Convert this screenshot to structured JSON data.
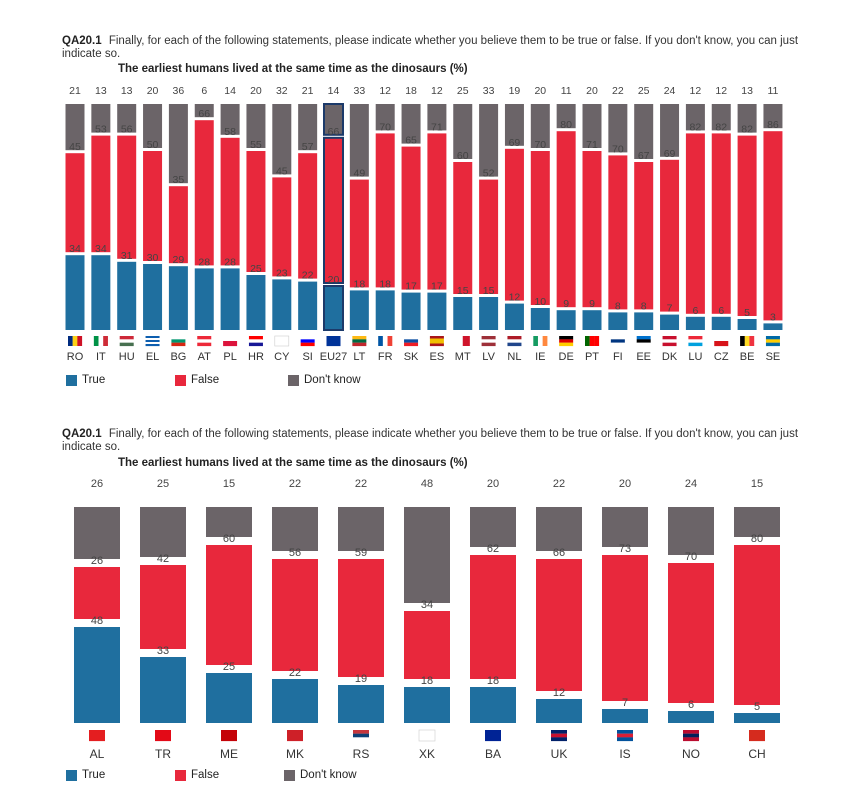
{
  "colors": {
    "true": "#1f6f9f",
    "false": "#e8283c",
    "dontknow": "#6b6468",
    "eu_outline": "#1c3a6a",
    "label": "#444444"
  },
  "legend": {
    "true_label": "True",
    "false_label": "False",
    "dontknow_label": "Don't know"
  },
  "chart_data": [
    {
      "type": "bar",
      "stacked": true,
      "question_code": "QA20.1",
      "question_text": "Finally, for each of the following statements, please indicate whether you believe them to be true or false. If you don't know, you can just indicate so.",
      "title": "The earliest humans lived at the same time as the dinosaurs (%)",
      "categories": [
        "RO",
        "IT",
        "HU",
        "EL",
        "BG",
        "AT",
        "PL",
        "HR",
        "CY",
        "SI",
        "EU27",
        "LT",
        "FR",
        "SK",
        "ES",
        "MT",
        "LV",
        "NL",
        "IE",
        "DE",
        "PT",
        "FI",
        "EE",
        "DK",
        "LU",
        "CZ",
        "BE",
        "SE"
      ],
      "highlight": "EU27",
      "series": [
        {
          "name": "True",
          "values": [
            34,
            34,
            31,
            30,
            29,
            28,
            28,
            25,
            23,
            22,
            20,
            18,
            18,
            17,
            17,
            15,
            15,
            12,
            10,
            9,
            9,
            8,
            8,
            7,
            6,
            6,
            5,
            3
          ]
        },
        {
          "name": "False",
          "values": [
            45,
            53,
            56,
            50,
            35,
            66,
            58,
            55,
            45,
            57,
            66,
            49,
            70,
            65,
            71,
            60,
            52,
            69,
            70,
            80,
            71,
            70,
            67,
            69,
            82,
            82,
            82,
            86
          ]
        },
        {
          "name": "Don't know",
          "values": [
            21,
            13,
            13,
            20,
            36,
            6,
            14,
            20,
            32,
            21,
            14,
            33,
            12,
            18,
            12,
            25,
            33,
            19,
            20,
            11,
            20,
            22,
            25,
            24,
            12,
            12,
            13,
            11
          ]
        }
      ],
      "legend_position": "bottom-left"
    },
    {
      "type": "bar",
      "stacked": true,
      "question_code": "QA20.1",
      "question_text": "Finally, for each of the following statements, please indicate whether you believe them to be true or false. If you don't know, you can just indicate so.",
      "title": "The earliest humans lived at the same time as the dinosaurs (%)",
      "categories": [
        "AL",
        "TR",
        "ME",
        "MK",
        "RS",
        "XK",
        "BA",
        "UK",
        "IS",
        "NO",
        "CH"
      ],
      "series": [
        {
          "name": "True",
          "values": [
            48,
            33,
            25,
            22,
            19,
            18,
            18,
            12,
            7,
            6,
            5
          ]
        },
        {
          "name": "False",
          "values": [
            26,
            42,
            60,
            56,
            59,
            34,
            62,
            66,
            73,
            70,
            80
          ]
        },
        {
          "name": "Don't know",
          "values": [
            26,
            25,
            15,
            22,
            22,
            48,
            20,
            22,
            20,
            24,
            15
          ]
        }
      ],
      "legend_position": "bottom-left"
    }
  ]
}
